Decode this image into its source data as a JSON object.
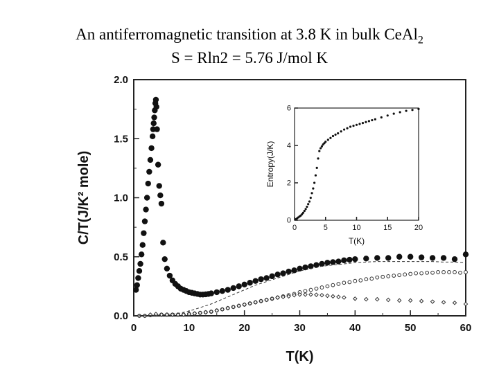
{
  "title": {
    "line1_text": "An antiferromagnetic transition at 3.8 K in bulk CeAl",
    "line1_sub": "2",
    "line2": "S = Rln2 = 5.76 J/mol K"
  },
  "chart_data": [
    {
      "type": "scatter",
      "title": "",
      "xlabel": "T(K)",
      "ylabel": "C/T(J/K² mole)",
      "xlim": [
        0,
        60
      ],
      "ylim": [
        0,
        2.0
      ],
      "x_ticks": [
        "0",
        "10",
        "20",
        "30",
        "40",
        "50",
        "60"
      ],
      "y_ticks": [
        "0.0",
        "0.5",
        "1.0",
        "1.5",
        "2.0"
      ],
      "grid": false,
      "legend": "none",
      "series": [
        {
          "marker": "filled-circle",
          "x": [
            0.4,
            0.6,
            0.8,
            1.0,
            1.2,
            1.4,
            1.6,
            1.8,
            2.0,
            2.2,
            2.4,
            2.6,
            2.8,
            3.0,
            3.2,
            3.4,
            3.5,
            3.6,
            3.7,
            3.8,
            3.9,
            4.0,
            4.1,
            4.2,
            4.4,
            4.6,
            4.8,
            5.0,
            5.3,
            5.6,
            6.0,
            6.5,
            7.0,
            7.5,
            8.0,
            8.5,
            9.0,
            9.5,
            10,
            10.5,
            11,
            11.5,
            12,
            12.5,
            13,
            13.5,
            14,
            15,
            16,
            17,
            18,
            19,
            20,
            21,
            22,
            23,
            24,
            25,
            26,
            27,
            28,
            29,
            30,
            31,
            32,
            33,
            34,
            35,
            36,
            37,
            38,
            39,
            40,
            42,
            44,
            46,
            48,
            50,
            52,
            54,
            56,
            58,
            60
          ],
          "y": [
            0.22,
            0.26,
            0.32,
            0.38,
            0.44,
            0.52,
            0.6,
            0.7,
            0.8,
            0.9,
            1.0,
            1.12,
            1.22,
            1.32,
            1.42,
            1.52,
            1.58,
            1.63,
            1.68,
            1.74,
            1.8,
            1.83,
            1.77,
            1.58,
            1.28,
            1.1,
            1.02,
            0.95,
            0.62,
            0.48,
            0.4,
            0.34,
            0.3,
            0.27,
            0.25,
            0.23,
            0.22,
            0.21,
            0.2,
            0.195,
            0.19,
            0.185,
            0.18,
            0.18,
            0.182,
            0.185,
            0.19,
            0.2,
            0.21,
            0.22,
            0.235,
            0.25,
            0.265,
            0.28,
            0.295,
            0.31,
            0.32,
            0.335,
            0.35,
            0.36,
            0.375,
            0.385,
            0.4,
            0.41,
            0.42,
            0.43,
            0.44,
            0.45,
            0.455,
            0.46,
            0.47,
            0.475,
            0.48,
            0.485,
            0.49,
            0.49,
            0.5,
            0.5,
            0.495,
            0.49,
            0.49,
            0.48,
            0.52
          ]
        },
        {
          "marker": "open-circle",
          "x": [
            1,
            2,
            3,
            4,
            5,
            6,
            7,
            8,
            9,
            10,
            11,
            12,
            13,
            14,
            15,
            16,
            17,
            18,
            19,
            20,
            21,
            22,
            23,
            24,
            25,
            26,
            27,
            28,
            29,
            30,
            31,
            32,
            33,
            34,
            35,
            36,
            37,
            38,
            39,
            40,
            41,
            42,
            43,
            44,
            45,
            46,
            47,
            48,
            49,
            50,
            51,
            52,
            53,
            54,
            55,
            56,
            57,
            58,
            59,
            60
          ],
          "y": [
            0.0,
            0.0,
            0.005,
            0.01,
            0.01,
            0.01,
            0.01,
            0.01,
            0.01,
            0.015,
            0.02,
            0.025,
            0.03,
            0.035,
            0.045,
            0.055,
            0.065,
            0.075,
            0.085,
            0.095,
            0.105,
            0.115,
            0.125,
            0.135,
            0.145,
            0.155,
            0.165,
            0.175,
            0.185,
            0.2,
            0.21,
            0.22,
            0.23,
            0.24,
            0.25,
            0.26,
            0.27,
            0.28,
            0.285,
            0.295,
            0.3,
            0.31,
            0.315,
            0.325,
            0.33,
            0.335,
            0.34,
            0.345,
            0.35,
            0.355,
            0.36,
            0.36,
            0.365,
            0.365,
            0.37,
            0.37,
            0.37,
            0.37,
            0.365,
            0.37
          ]
        },
        {
          "marker": "open-diamond",
          "x": [
            1,
            2,
            3,
            4,
            5,
            6,
            7,
            8,
            9,
            10,
            11,
            12,
            13,
            14,
            15,
            16,
            17,
            18,
            19,
            20,
            21,
            22,
            23,
            24,
            25,
            26,
            27,
            28,
            29,
            30,
            31,
            32,
            33,
            34,
            35,
            36,
            37,
            38,
            40,
            42,
            44,
            46,
            48,
            50,
            52,
            54,
            56,
            58,
            60
          ],
          "y": [
            0.0,
            0.0,
            0.01,
            0.015,
            0.01,
            0.01,
            0.01,
            0.01,
            0.01,
            0.015,
            0.02,
            0.025,
            0.03,
            0.035,
            0.045,
            0.055,
            0.065,
            0.075,
            0.085,
            0.095,
            0.105,
            0.115,
            0.125,
            0.135,
            0.145,
            0.155,
            0.16,
            0.165,
            0.175,
            0.18,
            0.18,
            0.18,
            0.178,
            0.175,
            0.17,
            0.165,
            0.16,
            0.155,
            0.145,
            0.14,
            0.14,
            0.135,
            0.13,
            0.13,
            0.125,
            0.12,
            0.115,
            0.11,
            0.1
          ]
        },
        {
          "style": "dashed-line",
          "x": [
            0,
            2,
            4,
            6,
            8,
            10,
            12,
            14,
            16,
            18,
            20,
            22,
            24,
            26,
            28,
            30,
            32,
            34,
            36,
            38,
            40,
            42,
            44,
            46,
            48,
            50,
            52,
            54,
            56,
            58,
            60
          ],
          "y": [
            0.0,
            0.002,
            0.005,
            0.01,
            0.02,
            0.04,
            0.07,
            0.1,
            0.14,
            0.18,
            0.22,
            0.26,
            0.29,
            0.32,
            0.35,
            0.38,
            0.4,
            0.42,
            0.43,
            0.44,
            0.45,
            0.455,
            0.46,
            0.46,
            0.46,
            0.46,
            0.46,
            0.46,
            0.455,
            0.455,
            0.45
          ]
        }
      ]
    },
    {
      "type": "scatter",
      "title": "",
      "xlabel": "T(K)",
      "ylabel": "Entropy(J/K)",
      "xlim": [
        0,
        20
      ],
      "ylim": [
        0,
        6
      ],
      "x_ticks": [
        "0",
        "5",
        "10",
        "15",
        "20"
      ],
      "y_ticks": [
        "0",
        "2",
        "4",
        "6"
      ],
      "grid": false,
      "legend": "none",
      "series": [
        {
          "marker": "filled-circle",
          "x": [
            0.2,
            0.4,
            0.6,
            0.8,
            1.0,
            1.2,
            1.4,
            1.6,
            1.8,
            2.0,
            2.2,
            2.4,
            2.6,
            2.8,
            3.0,
            3.2,
            3.4,
            3.6,
            3.8,
            4.0,
            4.2,
            4.4,
            4.6,
            4.8,
            5.0,
            5.4,
            5.8,
            6.2,
            6.6,
            7.0,
            7.5,
            8.0,
            8.5,
            9.0,
            9.5,
            10,
            10.5,
            11,
            11.5,
            12,
            12.5,
            13,
            14,
            15,
            16,
            17,
            18,
            19,
            20
          ],
          "y": [
            0.05,
            0.1,
            0.15,
            0.2,
            0.25,
            0.32,
            0.4,
            0.5,
            0.6,
            0.72,
            0.86,
            1.0,
            1.2,
            1.45,
            1.7,
            2.0,
            2.4,
            2.8,
            3.3,
            3.7,
            3.85,
            3.95,
            4.05,
            4.12,
            4.2,
            4.3,
            4.4,
            4.5,
            4.58,
            4.65,
            4.75,
            4.85,
            4.92,
            5.0,
            5.05,
            5.1,
            5.15,
            5.2,
            5.25,
            5.3,
            5.35,
            5.4,
            5.5,
            5.6,
            5.7,
            5.78,
            5.85,
            5.9,
            5.95
          ]
        }
      ]
    }
  ]
}
